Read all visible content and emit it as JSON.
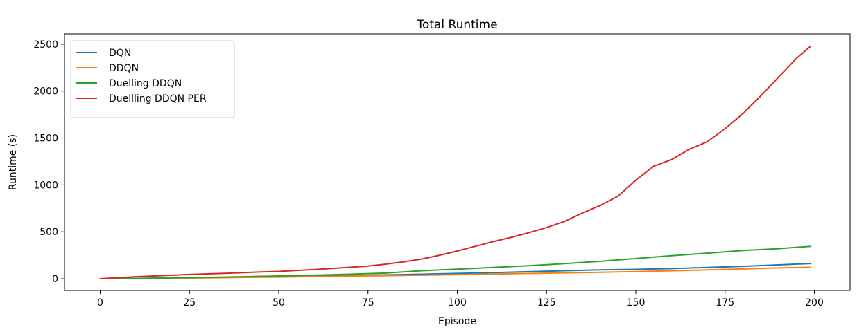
{
  "chart_data": {
    "type": "line",
    "title": "Total Runtime",
    "xlabel": "Episode",
    "ylabel": "Runtime (s)",
    "xlim": [
      -10,
      210
    ],
    "ylim": [
      -125,
      2610
    ],
    "xticks": [
      0,
      25,
      50,
      75,
      100,
      125,
      150,
      175,
      200
    ],
    "yticks": [
      0,
      500,
      1000,
      1500,
      2000,
      2500
    ],
    "xtick_labels": [
      "0",
      "25",
      "50",
      "75",
      "100",
      "125",
      "150",
      "175",
      "200"
    ],
    "ytick_labels": [
      "0",
      "500",
      "1000",
      "1500",
      "2000",
      "2500"
    ],
    "grid": false,
    "legend_position": "upper-left",
    "series": [
      {
        "name": "DQN",
        "color": "#1f77b4",
        "x": [
          0,
          10,
          20,
          30,
          40,
          50,
          60,
          70,
          80,
          90,
          100,
          110,
          120,
          130,
          140,
          150,
          160,
          170,
          180,
          190,
          199
        ],
        "y": [
          0,
          4,
          8,
          12,
          17,
          22,
          28,
          34,
          41,
          48,
          56,
          65,
          75,
          85,
          94,
          100,
          108,
          120,
          132,
          148,
          162
        ]
      },
      {
        "name": "DDQN",
        "color": "#ff7f0e",
        "x": [
          0,
          10,
          20,
          30,
          40,
          50,
          60,
          70,
          80,
          90,
          100,
          110,
          120,
          130,
          140,
          150,
          160,
          170,
          180,
          190,
          199
        ],
        "y": [
          0,
          3,
          6,
          10,
          14,
          18,
          23,
          28,
          33,
          38,
          44,
          50,
          56,
          62,
          68,
          76,
          84,
          94,
          104,
          115,
          122
        ]
      },
      {
        "name": "Duelling DDQN",
        "color": "#2ca02c",
        "x": [
          0,
          10,
          20,
          30,
          40,
          50,
          60,
          70,
          80,
          90,
          100,
          110,
          120,
          130,
          140,
          150,
          160,
          170,
          180,
          190,
          199
        ],
        "y": [
          0,
          4,
          9,
          15,
          22,
          30,
          38,
          48,
          60,
          85,
          102,
          120,
          138,
          160,
          185,
          215,
          245,
          272,
          300,
          320,
          345
        ]
      },
      {
        "name": "Duellling DDQN PER",
        "color": "#d62728",
        "x": [
          0,
          5,
          10,
          15,
          20,
          25,
          30,
          35,
          40,
          45,
          50,
          55,
          60,
          65,
          70,
          75,
          80,
          85,
          90,
          95,
          100,
          105,
          110,
          115,
          120,
          125,
          130,
          135,
          140,
          145,
          150,
          155,
          160,
          165,
          170,
          175,
          180,
          185,
          190,
          195,
          199
        ],
        "y": [
          0,
          12,
          22,
          30,
          38,
          45,
          52,
          58,
          65,
          72,
          78,
          88,
          98,
          110,
          122,
          135,
          155,
          180,
          210,
          250,
          295,
          345,
          395,
          440,
          490,
          545,
          610,
          700,
          780,
          880,
          1050,
          1200,
          1270,
          1380,
          1460,
          1600,
          1760,
          1950,
          2150,
          2350,
          2480
        ]
      }
    ]
  }
}
